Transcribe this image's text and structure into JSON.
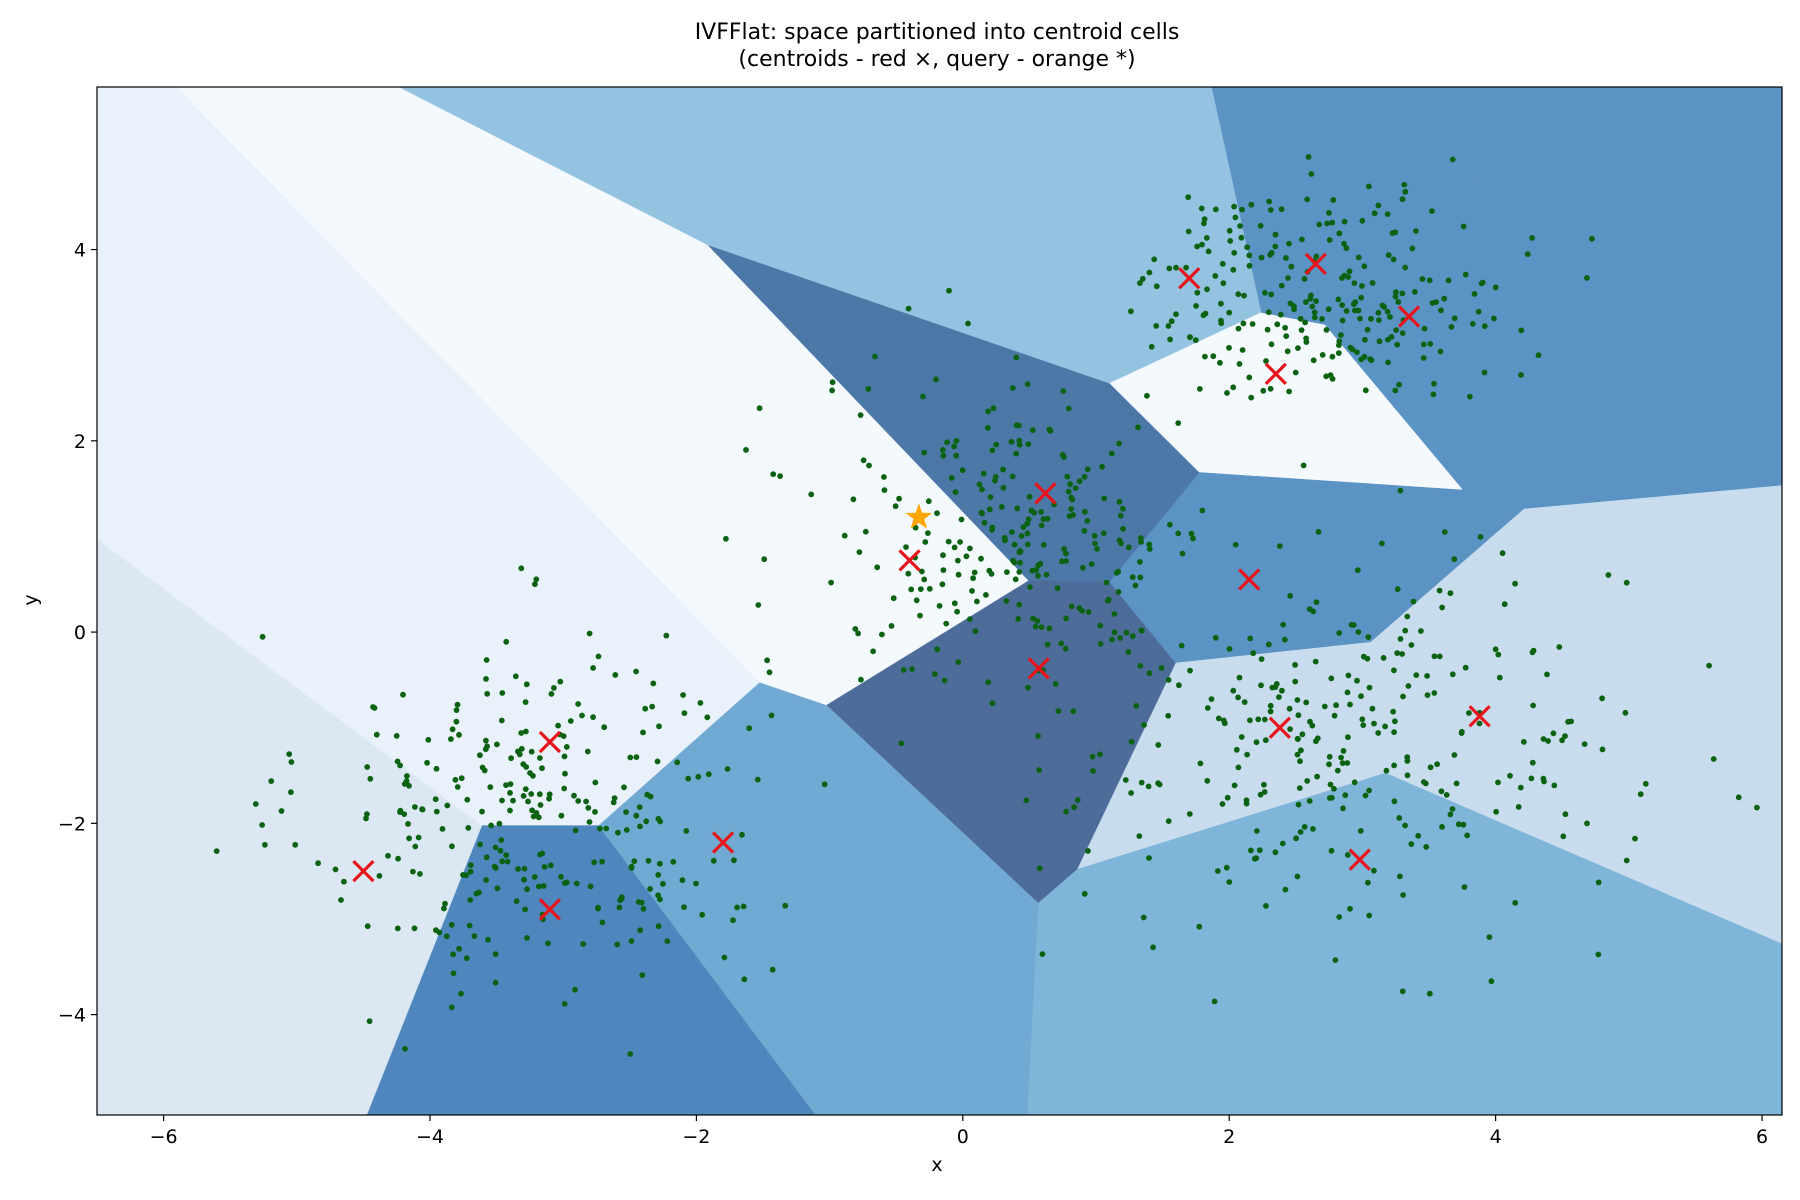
{
  "chart_data": {
    "type": "scatter",
    "title_lines": [
      "IVFFlat: space partitioned into centroid cells",
      "(centroids - red ×, query - orange *)"
    ],
    "xlabel": "x",
    "ylabel": "y",
    "xlim": [
      -6.5,
      6.15
    ],
    "ylim": [
      -5.05,
      5.7
    ],
    "xticks": [
      -6,
      -4,
      -2,
      0,
      2,
      4,
      6
    ],
    "xtick_labels": [
      "−6",
      "−4",
      "−2",
      "0",
      "2",
      "4",
      "6"
    ],
    "yticks": [
      -4,
      -2,
      0,
      2,
      4
    ],
    "ytick_labels": [
      "−4",
      "−2",
      "0",
      "2",
      "4"
    ],
    "grid": false,
    "background": "Voronoi cells of the centroids, shaded in blues",
    "colors": {
      "points": "#0b6312",
      "centroids": "#e8141b",
      "query": "#ffa500",
      "cell_shades": [
        "#f4f9fe",
        "#e9f1fa",
        "#dbe8f4",
        "#c8dcee",
        "#a8cee4",
        "#94c3e1",
        "#7fb5d8",
        "#70aad2",
        "#5b93c4",
        "#4f86be",
        "#4c78a8",
        "#4e6c99"
      ]
    },
    "centroids": [
      {
        "x": -4.5,
        "y": -2.5
      },
      {
        "x": -3.1,
        "y": -1.15
      },
      {
        "x": -3.1,
        "y": -2.9
      },
      {
        "x": -1.8,
        "y": -2.2
      },
      {
        "x": -0.4,
        "y": 0.75
      },
      {
        "x": 0.62,
        "y": 1.45
      },
      {
        "x": 0.57,
        "y": -0.38
      },
      {
        "x": 1.7,
        "y": 3.7
      },
      {
        "x": 2.35,
        "y": 2.7
      },
      {
        "x": 2.65,
        "y": 3.85
      },
      {
        "x": 3.35,
        "y": 3.3
      },
      {
        "x": 2.15,
        "y": 0.55
      },
      {
        "x": 2.38,
        "y": -1.0
      },
      {
        "x": 3.88,
        "y": -0.88
      },
      {
        "x": 2.98,
        "y": -2.38
      }
    ],
    "query": {
      "x": -0.33,
      "y": 1.2
    },
    "clusters": [
      {
        "center": [
          -3.2,
          -1.9
        ],
        "spread": [
          0.85,
          0.95
        ],
        "count": 300
      },
      {
        "center": [
          0.4,
          1.0
        ],
        "spread": [
          0.75,
          0.85
        ],
        "count": 260
      },
      {
        "center": [
          2.7,
          3.55
        ],
        "spread": [
          0.7,
          0.55
        ],
        "count": 250
      },
      {
        "center": [
          2.9,
          -1.2
        ],
        "spread": [
          1.05,
          0.95
        ],
        "count": 300
      }
    ]
  }
}
